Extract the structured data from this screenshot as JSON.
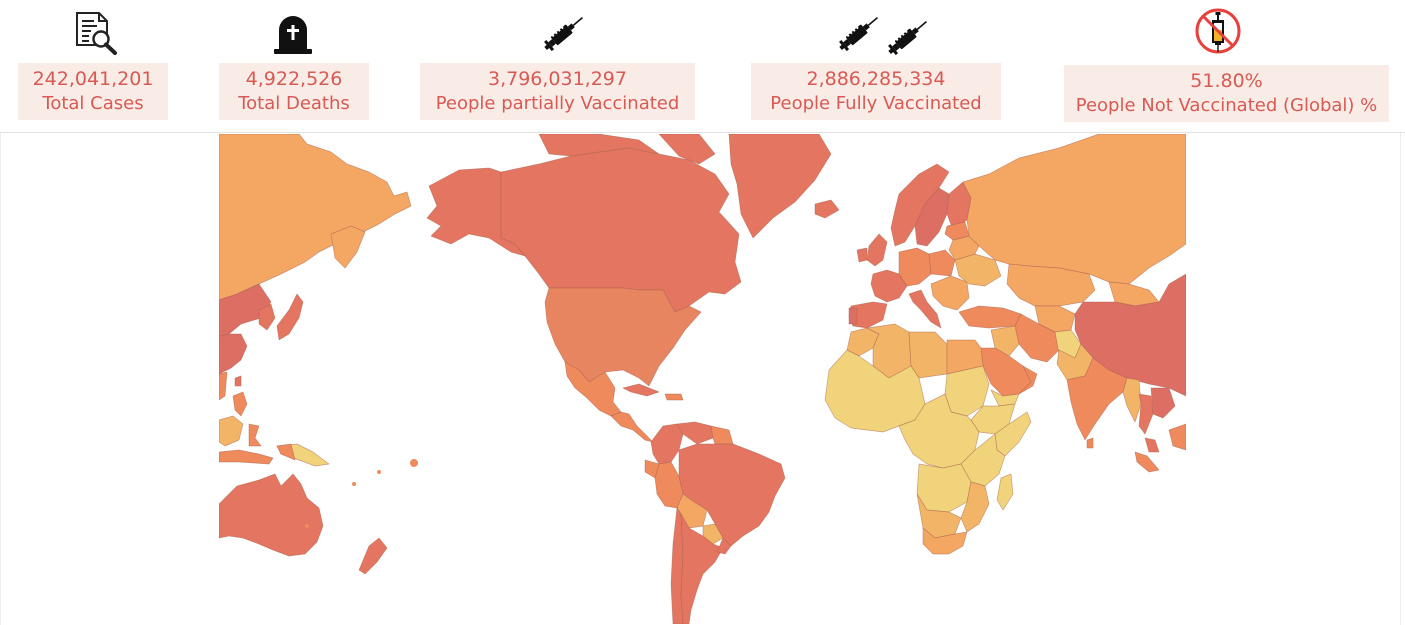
{
  "kpis": [
    {
      "id": "total-cases",
      "value": "242,041,201",
      "label": "Total Cases",
      "icon": "case-report-search-icon"
    },
    {
      "id": "total-deaths",
      "value": "4,922,526",
      "label": "Total Deaths",
      "icon": "tombstone-icon"
    },
    {
      "id": "partially-vaccinated",
      "value": "3,796,031,297",
      "label": "People partially Vaccinated",
      "icon": "syringe-icon"
    },
    {
      "id": "fully-vaccinated",
      "value": "2,886,285,334",
      "label": "People Fully Vaccinated",
      "icon": "double-syringe-icon"
    },
    {
      "id": "not-vaccinated",
      "value": "51.80%",
      "label": "People Not Vaccinated (Global) %",
      "icon": "no-vaccine-icon"
    }
  ],
  "colors": {
    "accent": "#d85a54",
    "kpi_background": "#f9ebe5",
    "map_scale": [
      "#f0d37a",
      "#f2b466",
      "#f4a663",
      "#ef8a5c",
      "#e47560",
      "#dd6e63"
    ]
  }
}
